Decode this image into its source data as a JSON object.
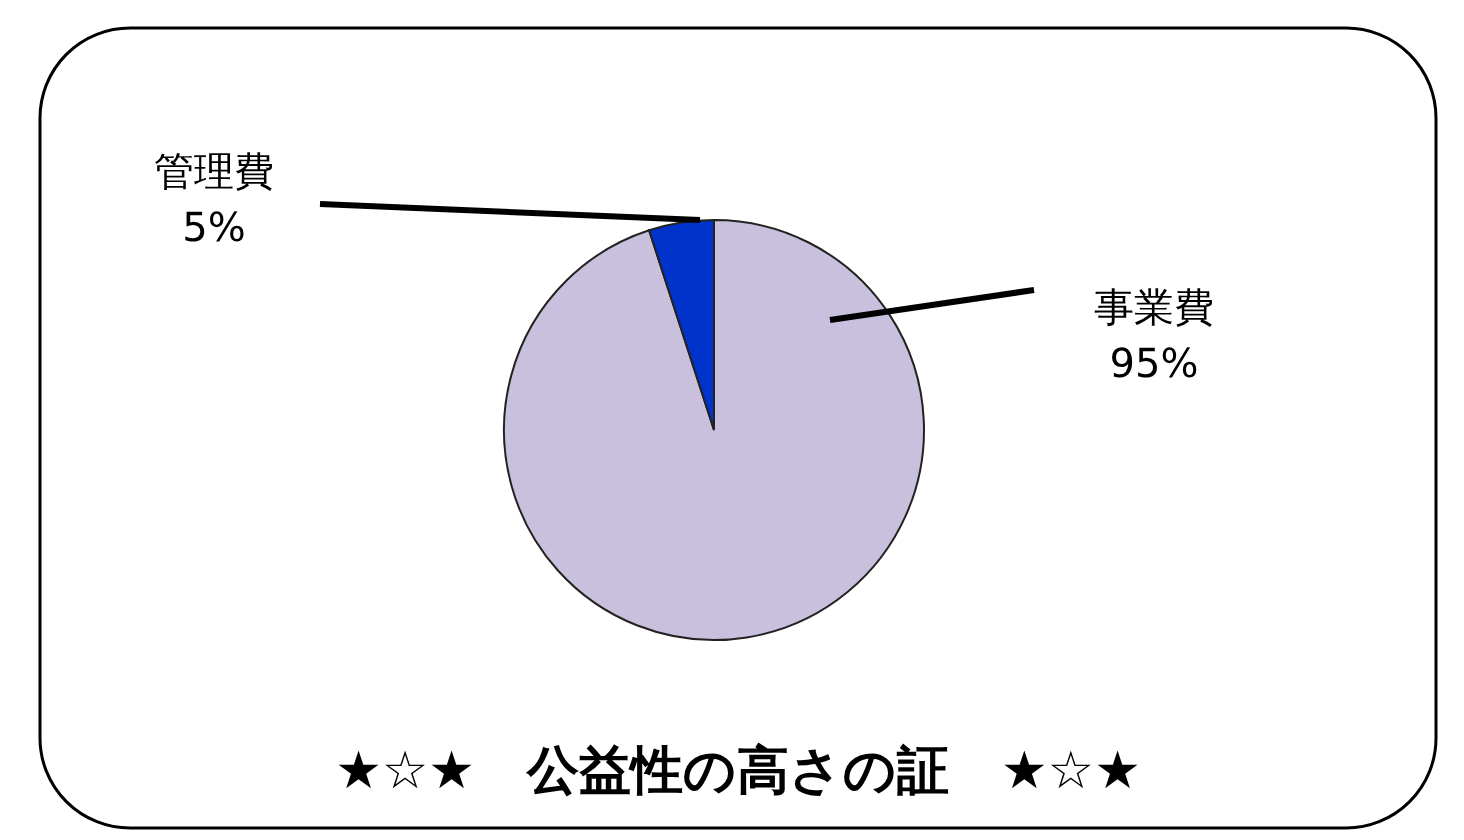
{
  "chart_data": {
    "type": "pie",
    "title": "★☆★　公益性の高さの証　★☆★",
    "categories": [
      "事業費",
      "管理費"
    ],
    "values": [
      95,
      5
    ],
    "colors": [
      "#c8c0dc",
      "#0033cc"
    ],
    "value_labels": [
      "95%",
      "5%"
    ]
  }
}
